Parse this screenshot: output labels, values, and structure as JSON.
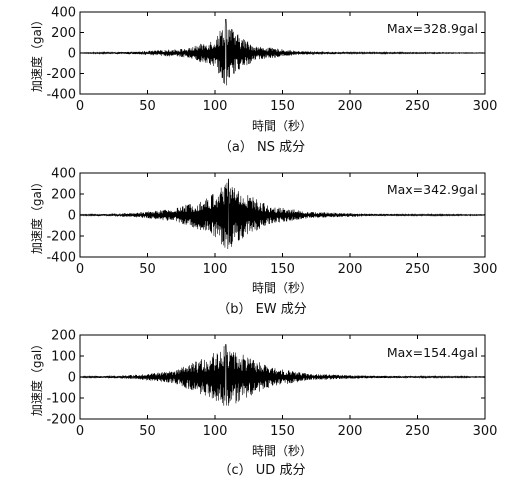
{
  "figure": {
    "y_axis_label": "加速度（gal）",
    "x_axis_label": "時間（秒）"
  },
  "chart_data": [
    {
      "type": "line",
      "caption": "（a） NS 成分",
      "annotation": "Max=328.9gal",
      "xlabel": "時間（秒）",
      "ylabel": "加速度（gal）",
      "xlim": [
        0,
        300
      ],
      "ylim": [
        -400,
        400
      ],
      "x_ticks": [
        0,
        50,
        100,
        150,
        200,
        250,
        300
      ],
      "y_ticks": [
        400,
        200,
        0,
        -200,
        -400
      ],
      "envelope_peaks": [
        {
          "t": 0,
          "amp": 3
        },
        {
          "t": 40,
          "amp": 12
        },
        {
          "t": 80,
          "amp": 45
        },
        {
          "t": 100,
          "amp": 140
        },
        {
          "t": 108,
          "amp": 328.9
        },
        {
          "t": 115,
          "amp": 200
        },
        {
          "t": 130,
          "amp": 70
        },
        {
          "t": 160,
          "amp": 20
        },
        {
          "t": 200,
          "amp": 8
        },
        {
          "t": 300,
          "amp": 3
        }
      ],
      "max_abs": 328.9,
      "color": "#000000",
      "grid": false,
      "legend": "none"
    },
    {
      "type": "line",
      "caption": "（b） EW 成分",
      "annotation": "Max=342.9gal",
      "xlabel": "時間（秒）",
      "ylabel": "加速度（gal）",
      "xlim": [
        0,
        300
      ],
      "ylim": [
        -400,
        400
      ],
      "x_ticks": [
        0,
        50,
        100,
        150,
        200,
        250,
        300
      ],
      "y_ticks": [
        400,
        200,
        0,
        -200,
        -400
      ],
      "envelope_peaks": [
        {
          "t": 0,
          "amp": 4
        },
        {
          "t": 40,
          "amp": 20
        },
        {
          "t": 70,
          "amp": 60
        },
        {
          "t": 95,
          "amp": 170
        },
        {
          "t": 110,
          "amp": 342.9
        },
        {
          "t": 120,
          "amp": 230
        },
        {
          "t": 140,
          "amp": 90
        },
        {
          "t": 170,
          "amp": 30
        },
        {
          "t": 220,
          "amp": 10
        },
        {
          "t": 300,
          "amp": 4
        }
      ],
      "max_abs": 342.9,
      "color": "#000000",
      "grid": false,
      "legend": "none"
    },
    {
      "type": "line",
      "caption": "（c） UD 成分",
      "annotation": "Max=154.4gal",
      "xlabel": "時間（秒）",
      "ylabel": "加速度（gal）",
      "xlim": [
        0,
        300
      ],
      "ylim": [
        -200,
        200
      ],
      "x_ticks": [
        0,
        50,
        100,
        150,
        200,
        250,
        300
      ],
      "y_ticks": [
        200,
        100,
        0,
        -100,
        -200
      ],
      "envelope_peaks": [
        {
          "t": 0,
          "amp": 2
        },
        {
          "t": 40,
          "amp": 10
        },
        {
          "t": 70,
          "amp": 30
        },
        {
          "t": 95,
          "amp": 100
        },
        {
          "t": 108,
          "amp": 154.4
        },
        {
          "t": 120,
          "amp": 110
        },
        {
          "t": 140,
          "amp": 50
        },
        {
          "t": 170,
          "amp": 15
        },
        {
          "t": 220,
          "amp": 6
        },
        {
          "t": 300,
          "amp": 2
        }
      ],
      "max_abs": 154.4,
      "color": "#000000",
      "grid": false,
      "legend": "none"
    }
  ]
}
